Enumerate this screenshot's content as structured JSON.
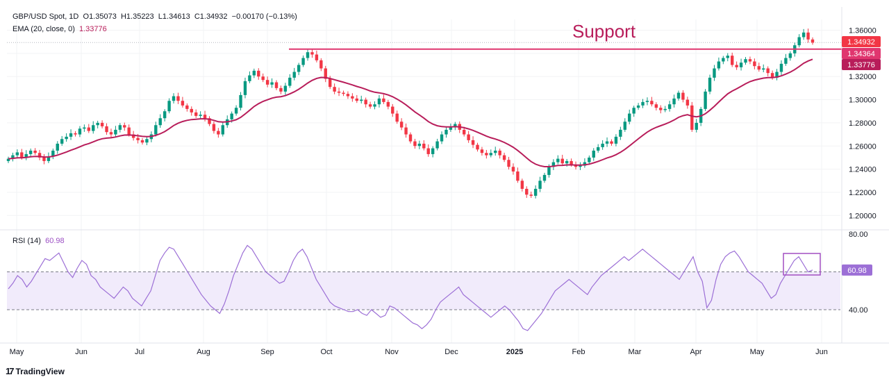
{
  "legend": {
    "symbol": "GBP/USD Spot, 1D",
    "open_label": "O",
    "open": "1.35073",
    "high_label": "H",
    "high": "1.35223",
    "low_label": "L",
    "low": "1.34613",
    "close_label": "C",
    "close": "1.34932",
    "change": "−0.00170 (−0.13%)",
    "ema_label": "EMA (20, close, 0)",
    "ema_value": "1.33776",
    "rsi_label": "RSI (14)",
    "rsi_value": "60.98"
  },
  "annotation": {
    "support_text": "Support"
  },
  "branding": {
    "logo_mark": "17",
    "logo_text": "TradingView"
  },
  "colors": {
    "up": "#089981",
    "down": "#f23645",
    "ema": "#b81d5a",
    "support": "#e0366f",
    "rsi": "#9c6fd6",
    "rsi_band": "#f1ebfb"
  },
  "chart_data": [
    {
      "type": "candlestick",
      "price_axis_ticks": [
        "1.36000",
        "1.34000",
        "1.32000",
        "1.30000",
        "1.28000",
        "1.26000",
        "1.24000",
        "1.22000",
        "1.20000"
      ],
      "price_tags": [
        "1.34932",
        "1.34364",
        "1.33776"
      ],
      "time_axis_labels": [
        "May",
        "Jun",
        "Jul",
        "Aug",
        "Sep",
        "Oct",
        "Nov",
        "Dec",
        "2025",
        "Feb",
        "Mar",
        "Apr",
        "May",
        "Jun"
      ],
      "ylim": [
        1.2,
        1.36
      ],
      "support_level": 1.34364,
      "close_series": [
        1.249,
        1.252,
        1.2545,
        1.25,
        1.253,
        1.256,
        1.254,
        1.25,
        1.247,
        1.251,
        1.256,
        1.262,
        1.266,
        1.268,
        1.271,
        1.27,
        1.275,
        1.276,
        1.273,
        1.278,
        1.28,
        1.277,
        1.272,
        1.27,
        1.274,
        1.278,
        1.276,
        1.27,
        1.267,
        1.265,
        1.263,
        1.266,
        1.27,
        1.278,
        1.284,
        1.29,
        1.299,
        1.303,
        1.299,
        1.295,
        1.292,
        1.289,
        1.286,
        1.287,
        1.284,
        1.279,
        1.273,
        1.27,
        1.278,
        1.283,
        1.288,
        1.293,
        1.304,
        1.316,
        1.321,
        1.325,
        1.32,
        1.317,
        1.313,
        1.315,
        1.31,
        1.307,
        1.312,
        1.319,
        1.324,
        1.33,
        1.336,
        1.341,
        1.339,
        1.334,
        1.327,
        1.318,
        1.311,
        1.307,
        1.306,
        1.305,
        1.303,
        1.301,
        1.299,
        1.3,
        1.296,
        1.294,
        1.296,
        1.301,
        1.298,
        1.294,
        1.288,
        1.281,
        1.276,
        1.27,
        1.264,
        1.26,
        1.262,
        1.258,
        1.253,
        1.258,
        1.264,
        1.27,
        1.274,
        1.276,
        1.279,
        1.274,
        1.27,
        1.265,
        1.261,
        1.257,
        1.254,
        1.252,
        1.254,
        1.256,
        1.252,
        1.248,
        1.242,
        1.238,
        1.23,
        1.223,
        1.218,
        1.217,
        1.223,
        1.23,
        1.235,
        1.242,
        1.246,
        1.249,
        1.245,
        1.247,
        1.244,
        1.242,
        1.243,
        1.246,
        1.25,
        1.256,
        1.259,
        1.262,
        1.264,
        1.262,
        1.268,
        1.274,
        1.281,
        1.288,
        1.293,
        1.295,
        1.298,
        1.299,
        1.296,
        1.293,
        1.291,
        1.292,
        1.296,
        1.301,
        1.306,
        1.3,
        1.295,
        1.274,
        1.28,
        1.292,
        1.307,
        1.319,
        1.327,
        1.333,
        1.336,
        1.338,
        1.33,
        1.328,
        1.332,
        1.335,
        1.333,
        1.329,
        1.326,
        1.327,
        1.323,
        1.319,
        1.324,
        1.331,
        1.336,
        1.34,
        1.347,
        1.354,
        1.358,
        1.352,
        1.3493
      ],
      "ema_series_key": "ema_20"
    },
    {
      "type": "line",
      "name": "RSI (14)",
      "ylim": [
        30,
        80
      ],
      "axis_ticks": [
        "80.00",
        "40.00"
      ],
      "upper_band": 60,
      "lower_band": 40,
      "value_tag": "60.98",
      "values": [
        51,
        54,
        58,
        56,
        52,
        55,
        59,
        63,
        67,
        66,
        68,
        70,
        65,
        60,
        57,
        62,
        66,
        64,
        58,
        56,
        52,
        50,
        48,
        46,
        49,
        52,
        50,
        46,
        44,
        42,
        46,
        50,
        58,
        66,
        70,
        73,
        72,
        68,
        64,
        60,
        56,
        52,
        48,
        45,
        42,
        40,
        38,
        43,
        50,
        58,
        64,
        70,
        74,
        72,
        68,
        64,
        60,
        58,
        56,
        54,
        55,
        60,
        66,
        70,
        72,
        68,
        62,
        56,
        52,
        48,
        44,
        42,
        41,
        40,
        39,
        39,
        40,
        38,
        37,
        40,
        38,
        36,
        37,
        42,
        41,
        39,
        37,
        35,
        33,
        32,
        30,
        32,
        35,
        40,
        44,
        46,
        48,
        50,
        52,
        48,
        46,
        44,
        42,
        40,
        38,
        36,
        38,
        40,
        42,
        40,
        37,
        34,
        30,
        29,
        32,
        35,
        38,
        42,
        46,
        50,
        52,
        54,
        56,
        54,
        52,
        50,
        48,
        52,
        55,
        58,
        60,
        62,
        64,
        66,
        68,
        66,
        68,
        70,
        72,
        70,
        68,
        66,
        64,
        62,
        60,
        58,
        56,
        60,
        64,
        68,
        60,
        55,
        41,
        45,
        56,
        64,
        68,
        70,
        71,
        68,
        64,
        60,
        58,
        56,
        54,
        50,
        46,
        48,
        54,
        58,
        62,
        66,
        68,
        64,
        60,
        60.98
      ]
    }
  ]
}
